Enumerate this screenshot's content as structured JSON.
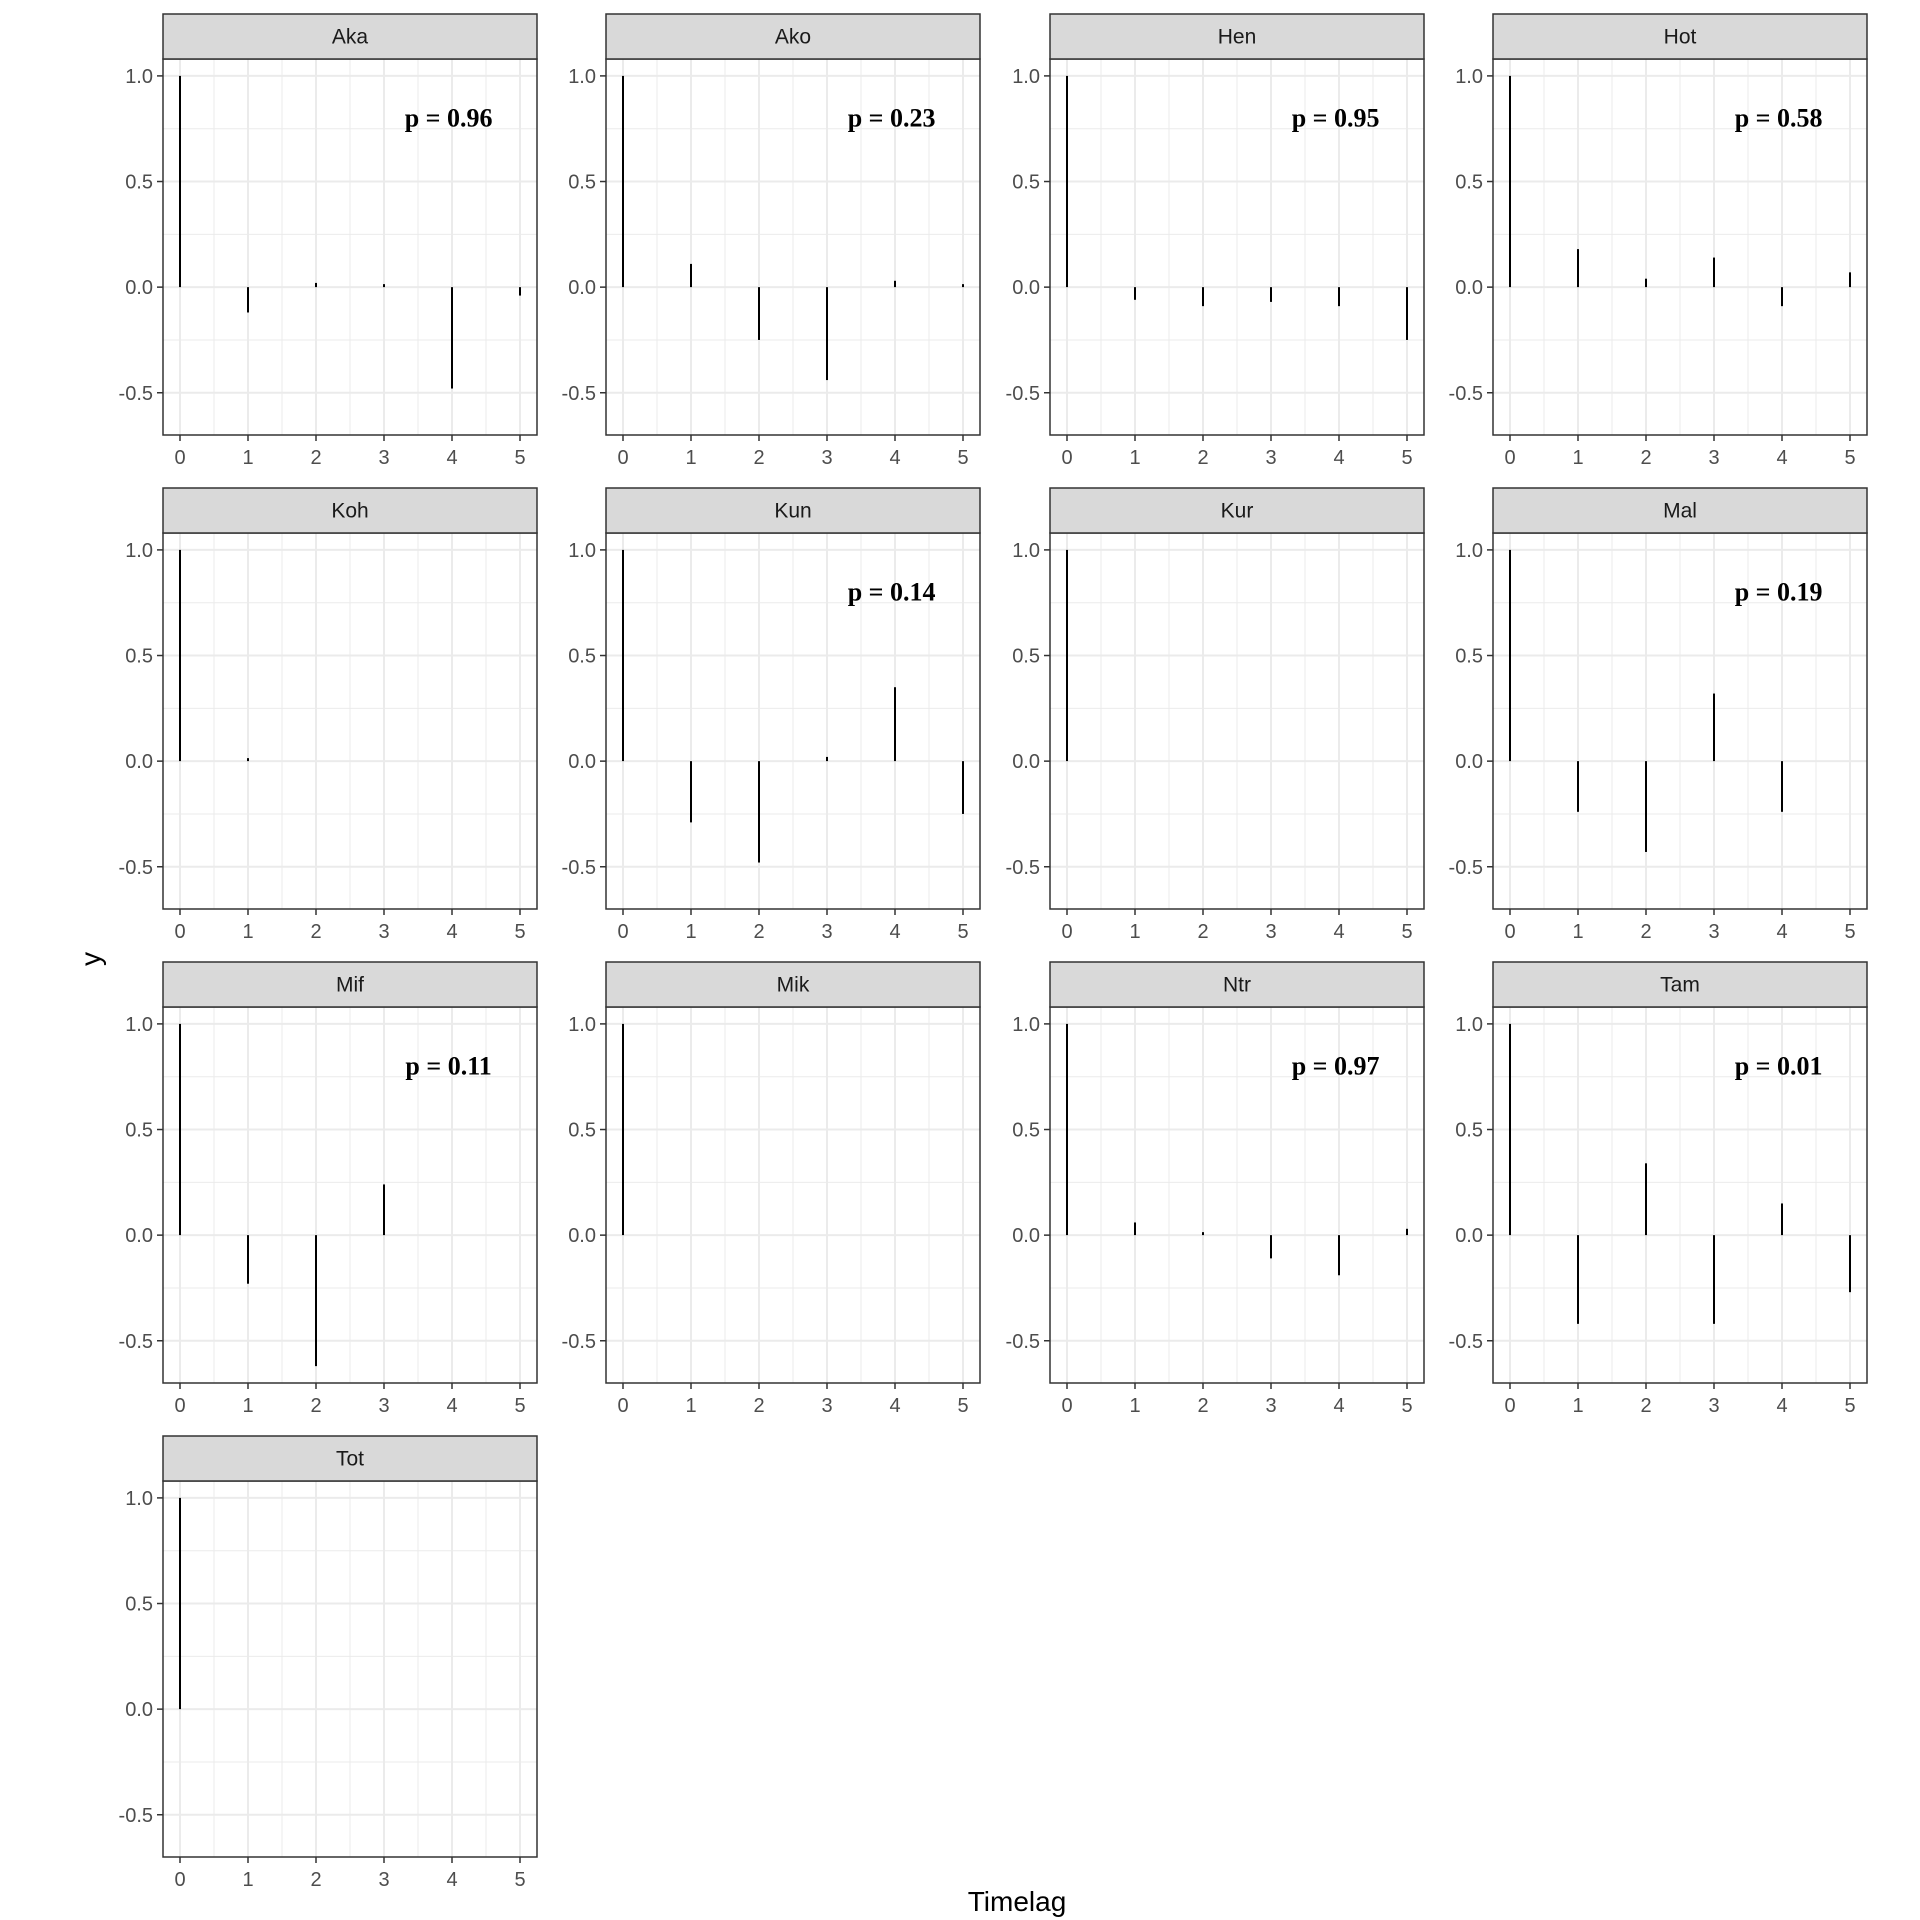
{
  "chart_data": {
    "type": "bar",
    "xlabel": "Timelag",
    "ylabel": "y",
    "xlim": [
      -0.25,
      5.25
    ],
    "ylim": [
      -0.7,
      1.08
    ],
    "x_ticks": [
      "0",
      "1",
      "2",
      "3",
      "4",
      "5"
    ],
    "y_ticks": [
      "1.0",
      "0.5",
      "0.0",
      "-0.5"
    ],
    "y_tick_values": [
      1.0,
      0.5,
      0.0,
      -0.5
    ],
    "grid": true,
    "legend": "none",
    "colors": {
      "bar": "#000000",
      "strip": "#d9d9d9",
      "grid": "#ebebeb"
    },
    "panels": [
      {
        "name": "Aka",
        "p": "p = 0.96",
        "x": [
          0,
          1,
          2,
          3,
          4,
          5
        ],
        "values": [
          1.0,
          -0.12,
          0.02,
          -0.01,
          -0.48,
          -0.04
        ]
      },
      {
        "name": "Ako",
        "p": "p = 0.23",
        "x": [
          0,
          1,
          2,
          3,
          4,
          5
        ],
        "values": [
          1.0,
          0.11,
          -0.25,
          -0.44,
          0.03,
          0.0
        ]
      },
      {
        "name": "Hen",
        "p": "p = 0.95",
        "x": [
          0,
          1,
          2,
          3,
          4,
          5
        ],
        "values": [
          1.0,
          -0.06,
          -0.09,
          -0.07,
          -0.09,
          -0.25
        ]
      },
      {
        "name": "Hot",
        "p": "p = 0.58",
        "x": [
          0,
          1,
          2,
          3,
          4,
          5
        ],
        "values": [
          1.0,
          0.18,
          0.04,
          0.14,
          -0.09,
          0.07
        ]
      },
      {
        "name": "Koh",
        "p": "",
        "x": [
          0,
          1
        ],
        "values": [
          1.0,
          0.01
        ]
      },
      {
        "name": "Kun",
        "p": "p = 0.14",
        "x": [
          0,
          1,
          2,
          3,
          4,
          5
        ],
        "values": [
          1.0,
          -0.29,
          -0.48,
          0.02,
          0.35,
          -0.25
        ]
      },
      {
        "name": "Kur",
        "p": "",
        "x": [
          0
        ],
        "values": [
          1.0
        ]
      },
      {
        "name": "Mal",
        "p": "p = 0.19",
        "x": [
          0,
          1,
          2,
          3,
          4
        ],
        "values": [
          1.0,
          -0.24,
          -0.43,
          0.32,
          -0.24
        ]
      },
      {
        "name": "Mif",
        "p": "p = 0.11",
        "x": [
          0,
          1,
          2,
          3
        ],
        "values": [
          1.0,
          -0.23,
          -0.62,
          0.24
        ]
      },
      {
        "name": "Mik",
        "p": "",
        "x": [
          0
        ],
        "values": [
          1.0
        ]
      },
      {
        "name": "Ntr",
        "p": "p = 0.97",
        "x": [
          0,
          1,
          2,
          3,
          4,
          5
        ],
        "values": [
          1.0,
          0.06,
          0.01,
          -0.11,
          -0.19,
          0.03
        ]
      },
      {
        "name": "Tam",
        "p": "p = 0.01",
        "x": [
          0,
          1,
          2,
          3,
          4,
          5
        ],
        "values": [
          1.0,
          -0.42,
          0.34,
          -0.42,
          0.15,
          -0.27
        ]
      },
      {
        "name": "Tot",
        "p": "",
        "x": [
          0
        ],
        "values": [
          1.0
        ]
      }
    ]
  }
}
